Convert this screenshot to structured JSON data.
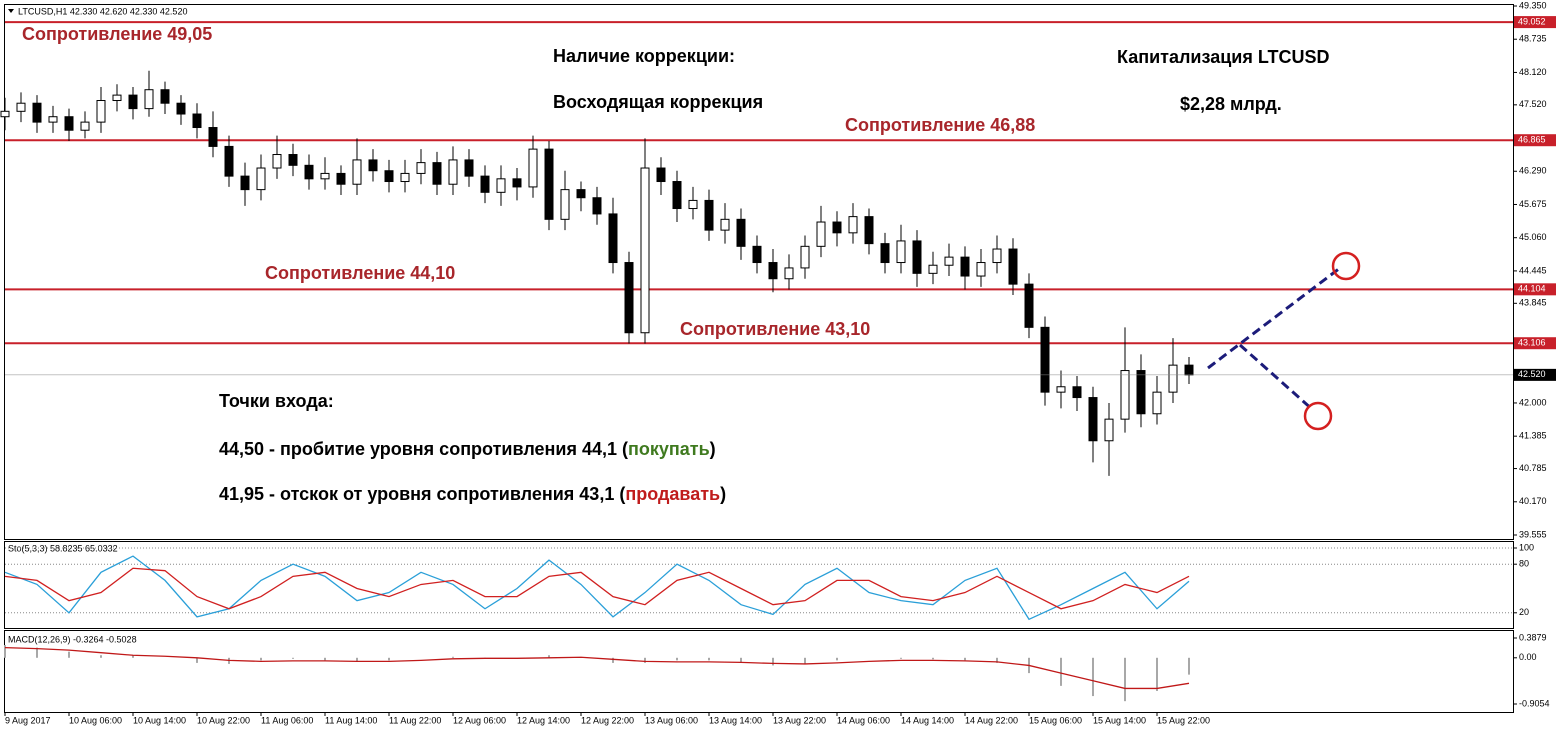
{
  "chart_data": [
    {
      "type": "candlestick",
      "title": "LTCUSD,H1 42.330 42.620 42.330 42.520",
      "bull_color": "#ffffff",
      "bear_color": "#000000",
      "x": [
        0,
        2,
        4,
        6,
        8,
        10,
        12,
        14,
        16,
        18,
        20,
        22,
        24,
        26,
        28,
        30,
        32,
        34,
        36,
        38,
        40,
        42,
        44,
        46,
        48,
        50,
        52,
        54,
        56,
        58,
        60,
        62,
        64,
        66,
        68,
        70,
        72,
        74,
        76,
        78,
        80,
        82,
        84,
        86,
        88,
        90,
        92,
        94,
        96,
        98,
        100,
        102,
        104,
        106,
        108,
        110,
        112,
        114,
        116,
        118,
        120,
        122,
        124,
        126,
        128,
        130,
        132,
        134,
        136,
        138,
        140,
        142,
        144,
        146,
        148
      ],
      "open": [
        47.3,
        47.4,
        47.55,
        47.2,
        47.3,
        47.05,
        47.2,
        47.6,
        47.7,
        47.45,
        47.8,
        47.55,
        47.35,
        47.1,
        46.75,
        46.2,
        45.95,
        46.35,
        46.6,
        46.4,
        46.15,
        46.25,
        46.05,
        46.5,
        46.3,
        46.1,
        46.25,
        46.45,
        46.05,
        46.5,
        46.2,
        45.9,
        46.15,
        46.0,
        46.7,
        45.4,
        45.95,
        45.8,
        45.5,
        44.6,
        43.3,
        46.35,
        46.1,
        45.6,
        45.75,
        45.2,
        45.4,
        44.9,
        44.6,
        44.3,
        44.5,
        44.9,
        45.35,
        45.15,
        45.45,
        44.95,
        44.6,
        45.0,
        44.4,
        44.55,
        44.7,
        44.35,
        44.6,
        44.85,
        44.2,
        43.4,
        42.2,
        42.3,
        42.1,
        41.3,
        41.7,
        42.6,
        41.8,
        42.2,
        42.7
      ],
      "high": [
        47.65,
        47.75,
        47.7,
        47.5,
        47.45,
        47.4,
        47.85,
        47.9,
        47.85,
        48.15,
        47.95,
        47.7,
        47.55,
        47.4,
        46.95,
        46.45,
        46.6,
        46.95,
        46.8,
        46.6,
        46.55,
        46.4,
        46.9,
        46.7,
        46.5,
        46.5,
        46.7,
        46.65,
        46.75,
        46.7,
        46.4,
        46.4,
        46.35,
        46.95,
        46.85,
        46.3,
        46.1,
        46.0,
        45.8,
        44.8,
        46.9,
        46.55,
        46.3,
        46.0,
        45.95,
        45.7,
        45.6,
        45.1,
        44.85,
        44.75,
        45.1,
        45.65,
        45.55,
        45.7,
        45.6,
        45.15,
        45.3,
        45.2,
        44.8,
        44.95,
        44.9,
        44.85,
        45.1,
        45.05,
        44.4,
        43.6,
        42.6,
        42.5,
        42.3,
        42.0,
        43.4,
        42.9,
        42.5,
        43.2,
        42.85
      ],
      "low": [
        47.05,
        47.2,
        47.0,
        47.0,
        46.85,
        46.9,
        47.0,
        47.4,
        47.25,
        47.3,
        47.35,
        47.15,
        46.9,
        46.55,
        46.0,
        45.65,
        45.75,
        46.15,
        46.2,
        45.95,
        45.95,
        45.85,
        45.85,
        46.1,
        45.9,
        45.9,
        46.05,
        45.85,
        45.85,
        46.0,
        45.7,
        45.65,
        45.75,
        45.8,
        45.2,
        45.2,
        45.55,
        45.3,
        44.4,
        43.1,
        43.1,
        45.85,
        45.35,
        45.4,
        45.0,
        44.95,
        44.65,
        44.4,
        44.05,
        44.1,
        44.3,
        44.7,
        44.9,
        44.95,
        44.75,
        44.4,
        44.4,
        44.15,
        44.2,
        44.35,
        44.1,
        44.15,
        44.4,
        44.0,
        43.2,
        41.95,
        41.9,
        41.85,
        40.9,
        40.65,
        41.45,
        41.55,
        41.6,
        42.0,
        42.35
      ],
      "close": [
        47.4,
        47.55,
        47.2,
        47.3,
        47.05,
        47.2,
        47.6,
        47.7,
        47.45,
        47.8,
        47.55,
        47.35,
        47.1,
        46.75,
        46.2,
        45.95,
        46.35,
        46.6,
        46.4,
        46.15,
        46.25,
        46.05,
        46.5,
        46.3,
        46.1,
        46.25,
        46.45,
        46.05,
        46.5,
        46.2,
        45.9,
        46.15,
        46.0,
        46.7,
        45.4,
        45.95,
        45.8,
        45.5,
        44.6,
        43.3,
        46.35,
        46.1,
        45.6,
        45.75,
        45.2,
        45.4,
        44.9,
        44.6,
        44.3,
        44.5,
        44.9,
        45.35,
        45.15,
        45.45,
        44.95,
        44.6,
        45.0,
        44.4,
        44.55,
        44.7,
        44.35,
        44.6,
        44.85,
        44.2,
        43.4,
        42.2,
        42.3,
        42.1,
        41.3,
        41.7,
        42.6,
        41.8,
        42.2,
        42.7,
        42.52
      ],
      "xlim": [
        0,
        150
      ],
      "ylim": [
        39.555,
        49.35
      ],
      "yticks": [
        {
          "value": 49.35,
          "label": "49.350"
        },
        48.735,
        {
          "value": 48.12,
          "label": "48.120"
        },
        {
          "value": 47.52,
          "label": "47.520"
        },
        {
          "value": 46.29,
          "label": "46.290"
        },
        45.675,
        {
          "value": 45.06,
          "label": "45.060"
        },
        44.445,
        43.845,
        {
          "value": 42.0,
          "label": "42.000"
        },
        41.385,
        40.785,
        {
          "value": 40.17,
          "label": "40.170"
        },
        39.555
      ],
      "xticks": [
        {
          "value": 0,
          "label": "9 Aug 2017"
        },
        {
          "value": 8,
          "label": "10 Aug 06:00"
        },
        {
          "value": 16,
          "label": "10 Aug 14:00"
        },
        {
          "value": 24,
          "label": "10 Aug 22:00"
        },
        {
          "value": 32,
          "label": "11 Aug 06:00"
        },
        {
          "value": 40,
          "label": "11 Aug 14:00"
        },
        {
          "value": 48,
          "label": "11 Aug 22:00"
        },
        {
          "value": 56,
          "label": "12 Aug 06:00"
        },
        {
          "value": 64,
          "label": "12 Aug 14:00"
        },
        {
          "value": 72,
          "label": "12 Aug 22:00"
        },
        {
          "value": 80,
          "label": "13 Aug 06:00"
        },
        {
          "value": 88,
          "label": "13 Aug 14:00"
        },
        {
          "value": 96,
          "label": "13 Aug 22:00"
        },
        {
          "value": 104,
          "label": "14 Aug 06:00"
        },
        {
          "value": 112,
          "label": "14 Aug 14:00"
        },
        {
          "value": 120,
          "label": "14 Aug 22:00"
        },
        {
          "value": 128,
          "label": "15 Aug 06:00"
        },
        {
          "value": 136,
          "label": "15 Aug 14:00"
        },
        {
          "value": 144,
          "label": "15 Aug 22:00"
        }
      ],
      "levels_color": "#c8202a",
      "levels": [
        {
          "value": 49.052,
          "label": "49.052",
          "name": "Сопротивление 49,05"
        },
        {
          "value": 46.865,
          "label": "46.865",
          "name": "Сопротивление 46,88"
        },
        {
          "value": 44.104,
          "label": "44.104",
          "name": "Сопротивление 44,10"
        },
        {
          "value": 43.106,
          "label": "43.106",
          "name": "Сопротивление 43,10"
        }
      ],
      "last_price": {
        "value": 42.52,
        "label": "42.520"
      },
      "annotations": [
        "Наличие коррекции:",
        "Восходящая коррекция",
        "Капитализация LTCUSD",
        "$2,28 млрд.",
        "Точки входа:"
      ],
      "entries": [
        {
          "text": "44,50 - пробитие уровня сопротивления 44,1 (",
          "action": "покупать",
          "end": ")",
          "color": "#3f7a1f"
        },
        {
          "text": "41,95 - отскок от уровня сопротивления 43,1 (",
          "action": "продавать",
          "end": ")",
          "color": "#c01c1c"
        }
      ]
    },
    {
      "type": "line",
      "title": "Sto(5,3,3) 58.8235 65.0332",
      "x": [
        0,
        4,
        8,
        12,
        16,
        20,
        24,
        28,
        32,
        36,
        40,
        44,
        48,
        52,
        56,
        60,
        64,
        68,
        72,
        76,
        80,
        84,
        88,
        92,
        96,
        100,
        104,
        108,
        112,
        116,
        120,
        124,
        128,
        132,
        136,
        140,
        144,
        148
      ],
      "series": [
        {
          "color": "#2a9fd8",
          "values": [
            70,
            55,
            20,
            70,
            90,
            60,
            15,
            25,
            60,
            80,
            65,
            35,
            45,
            70,
            55,
            25,
            50,
            85,
            55,
            15,
            45,
            80,
            60,
            30,
            18,
            55,
            75,
            45,
            35,
            30,
            60,
            75,
            12,
            30,
            50,
            70,
            25,
            59
          ]
        },
        {
          "color": "#d02020",
          "values": [
            65,
            60,
            35,
            45,
            75,
            72,
            40,
            25,
            40,
            65,
            70,
            50,
            40,
            55,
            60,
            40,
            40,
            65,
            70,
            40,
            30,
            60,
            70,
            50,
            30,
            35,
            60,
            60,
            40,
            35,
            45,
            65,
            45,
            25,
            35,
            55,
            45,
            65
          ]
        }
      ],
      "xlim": [
        0,
        150
      ],
      "ylim": [
        0,
        100
      ],
      "yticks": [
        20,
        80,
        100
      ]
    },
    {
      "type": "macd",
      "title": "MACD(12,26,9) -0.3264 -0.5028",
      "x": [
        0,
        4,
        8,
        12,
        16,
        20,
        24,
        28,
        32,
        36,
        40,
        44,
        48,
        52,
        56,
        60,
        64,
        68,
        72,
        76,
        80,
        84,
        88,
        92,
        96,
        100,
        104,
        108,
        112,
        116,
        120,
        124,
        128,
        132,
        136,
        140,
        144,
        148
      ],
      "histogram": [
        0.25,
        0.2,
        0.12,
        0.05,
        0.05,
        0.0,
        -0.1,
        -0.12,
        -0.05,
        -0.02,
        -0.05,
        -0.08,
        -0.05,
        0.0,
        0.02,
        -0.02,
        0.0,
        0.05,
        0.0,
        -0.1,
        -0.1,
        -0.05,
        -0.05,
        -0.1,
        -0.15,
        -0.12,
        -0.05,
        0.0,
        -0.02,
        -0.03,
        -0.05,
        -0.1,
        -0.3,
        -0.55,
        -0.75,
        -0.85,
        -0.65,
        -0.33
      ],
      "histogram_color": "#a8a8a8",
      "signal": [
        0.2,
        0.18,
        0.15,
        0.1,
        0.05,
        0.03,
        0.0,
        -0.05,
        -0.07,
        -0.06,
        -0.06,
        -0.07,
        -0.07,
        -0.05,
        -0.02,
        -0.01,
        -0.01,
        0.0,
        0.01,
        -0.03,
        -0.07,
        -0.08,
        -0.08,
        -0.09,
        -0.11,
        -0.12,
        -0.1,
        -0.07,
        -0.05,
        -0.05,
        -0.06,
        -0.08,
        -0.15,
        -0.3,
        -0.45,
        -0.6,
        -0.6,
        -0.5
      ],
      "signal_color": "#c01818",
      "xlim": [
        0,
        150
      ],
      "ylim": [
        -0.9054,
        0.3879
      ],
      "yticks": [
        0.3879,
        {
          "value": 0,
          "label": "0.00"
        },
        -0.9054
      ]
    }
  ]
}
